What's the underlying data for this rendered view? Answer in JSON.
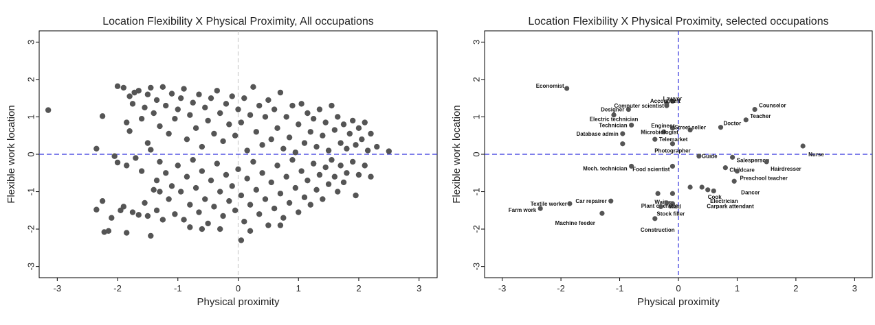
{
  "chart_data": [
    {
      "type": "scatter",
      "title": "Location Flexibility X Physical Proximity, All occupations",
      "xlabel": "Physical proximity",
      "ylabel": "Flexible work location",
      "xlim": [
        -3.3,
        3.3
      ],
      "ylim": [
        -3.3,
        3.3
      ],
      "xticks": [
        -3,
        -2,
        -1,
        0,
        1,
        2,
        3
      ],
      "yticks": [
        -3,
        -2,
        -1,
        0,
        1,
        2,
        3
      ],
      "point_color": "#555555",
      "reference_lines": {
        "horizontal": 0,
        "horizontal_color": "#3333dd",
        "vertical": 0,
        "vertical_color": "#cccccc"
      },
      "points": [
        [
          -3.15,
          1.18
        ],
        [
          -2.25,
          1.02
        ],
        [
          -2.35,
          0.15
        ],
        [
          -2.35,
          -1.48
        ],
        [
          -2.25,
          -1.25
        ],
        [
          -2.22,
          -2.08
        ],
        [
          -2.15,
          -2.05
        ],
        [
          -2.1,
          -1.7
        ],
        [
          -2.05,
          -0.05
        ],
        [
          -2.0,
          -0.22
        ],
        [
          -1.95,
          -1.5
        ],
        [
          -1.9,
          -1.4
        ],
        [
          -1.85,
          -2.1
        ],
        [
          -1.85,
          -0.3
        ],
        [
          -1.8,
          0.62
        ],
        [
          -1.75,
          -1.55
        ],
        [
          -1.7,
          -0.1
        ],
        [
          -1.65,
          -1.62
        ],
        [
          -1.6,
          -0.45
        ],
        [
          -1.55,
          -1.3
        ],
        [
          -1.5,
          -1.65
        ],
        [
          -1.45,
          -2.18
        ],
        [
          -1.5,
          0.3
        ],
        [
          -1.45,
          0.12
        ],
        [
          -1.4,
          -0.95
        ],
        [
          -1.35,
          -1.5
        ],
        [
          -1.3,
          -0.2
        ],
        [
          -2.0,
          1.82
        ],
        [
          -1.9,
          1.78
        ],
        [
          -1.85,
          0.85
        ],
        [
          -1.8,
          1.55
        ],
        [
          -1.75,
          1.35
        ],
        [
          -1.72,
          1.65
        ],
        [
          -1.65,
          1.7
        ],
        [
          -1.6,
          0.95
        ],
        [
          -1.55,
          1.25
        ],
        [
          -1.5,
          1.6
        ],
        [
          -1.45,
          1.78
        ],
        [
          -1.4,
          1.1
        ],
        [
          -1.35,
          1.45
        ],
        [
          -1.3,
          0.75
        ],
        [
          -1.25,
          1.8
        ],
        [
          -1.2,
          1.3
        ],
        [
          -1.15,
          0.55
        ],
        [
          -1.1,
          1.62
        ],
        [
          -1.05,
          0.95
        ],
        [
          -1.0,
          1.2
        ],
        [
          -0.95,
          1.5
        ],
        [
          -0.9,
          1.75
        ],
        [
          -0.85,
          0.4
        ],
        [
          -0.8,
          1.05
        ],
        [
          -0.75,
          1.38
        ],
        [
          -0.7,
          0.7
        ],
        [
          -0.65,
          1.6
        ],
        [
          -0.6,
          0.2
        ],
        [
          -0.55,
          1.25
        ],
        [
          -0.5,
          0.9
        ],
        [
          -0.45,
          1.5
        ],
        [
          -0.4,
          0.55
        ],
        [
          -0.35,
          1.7
        ],
        [
          -0.3,
          1.1
        ],
        [
          -0.25,
          0.35
        ],
        [
          -0.2,
          1.35
        ],
        [
          -0.15,
          0.8
        ],
        [
          -0.1,
          1.55
        ],
        [
          -0.05,
          0.5
        ],
        [
          0.0,
          1.2
        ],
        [
          0.05,
          0.85
        ],
        [
          0.1,
          1.5
        ],
        [
          0.15,
          0.1
        ],
        [
          0.2,
          1.05
        ],
        [
          0.25,
          1.8
        ],
        [
          0.3,
          0.6
        ],
        [
          0.35,
          1.3
        ],
        [
          0.4,
          0.25
        ],
        [
          0.45,
          1.0
        ],
        [
          0.5,
          1.45
        ],
        [
          0.55,
          0.4
        ],
        [
          0.6,
          1.2
        ],
        [
          0.65,
          0.7
        ],
        [
          0.7,
          1.65
        ],
        [
          0.75,
          0.15
        ],
        [
          0.8,
          1.0
        ],
        [
          0.85,
          0.45
        ],
        [
          0.9,
          1.3
        ],
        [
          0.95,
          0.05
        ],
        [
          1.0,
          0.8
        ],
        [
          1.05,
          1.35
        ],
        [
          1.1,
          0.3
        ],
        [
          1.15,
          1.1
        ],
        [
          1.2,
          0.6
        ],
        [
          1.25,
          0.95
        ],
        [
          1.3,
          0.2
        ],
        [
          1.35,
          1.2
        ],
        [
          1.4,
          0.5
        ],
        [
          1.45,
          0.85
        ],
        [
          1.5,
          0.1
        ],
        [
          1.55,
          1.3
        ],
        [
          1.6,
          0.65
        ],
        [
          1.65,
          1.0
        ],
        [
          1.7,
          0.3
        ],
        [
          1.75,
          0.8
        ],
        [
          1.8,
          0.15
        ],
        [
          1.85,
          0.55
        ],
        [
          1.9,
          0.9
        ],
        [
          1.95,
          0.25
        ],
        [
          2.0,
          0.7
        ],
        [
          2.05,
          0.4
        ],
        [
          2.1,
          0.85
        ],
        [
          2.15,
          0.1
        ],
        [
          2.2,
          0.55
        ],
        [
          2.3,
          0.2
        ],
        [
          2.5,
          0.08
        ],
        [
          -1.2,
          -0.5
        ],
        [
          -1.15,
          -1.2
        ],
        [
          -1.1,
          -0.85
        ],
        [
          -1.05,
          -1.6
        ],
        [
          -1.0,
          -0.3
        ],
        [
          -0.95,
          -1.0
        ],
        [
          -0.9,
          -1.75
        ],
        [
          -0.85,
          -0.6
        ],
        [
          -0.8,
          -1.35
        ],
        [
          -0.75,
          -0.15
        ],
        [
          -0.7,
          -0.9
        ],
        [
          -0.65,
          -1.55
        ],
        [
          -0.6,
          -0.45
        ],
        [
          -0.55,
          -1.2
        ],
        [
          -0.5,
          -1.85
        ],
        [
          -0.45,
          -0.7
        ],
        [
          -0.4,
          -1.4
        ],
        [
          -0.35,
          -0.25
        ],
        [
          -0.3,
          -1.0
        ],
        [
          -0.25,
          -1.65
        ],
        [
          -0.2,
          -0.55
        ],
        [
          -0.15,
          -1.25
        ],
        [
          -0.1,
          -0.85
        ],
        [
          -0.05,
          -1.5
        ],
        [
          0.0,
          -0.4
        ],
        [
          0.05,
          -1.1
        ],
        [
          0.1,
          -1.8
        ],
        [
          0.15,
          -0.65
        ],
        [
          0.2,
          -1.35
        ],
        [
          0.25,
          -0.2
        ],
        [
          0.3,
          -0.95
        ],
        [
          0.35,
          -1.6
        ],
        [
          0.4,
          -0.5
        ],
        [
          0.45,
          -1.2
        ],
        [
          0.5,
          -1.9
        ],
        [
          0.55,
          -0.75
        ],
        [
          0.6,
          -1.45
        ],
        [
          0.65,
          -0.3
        ],
        [
          0.7,
          -1.05
        ],
        [
          0.75,
          -1.7
        ],
        [
          0.8,
          -0.6
        ],
        [
          0.85,
          -1.3
        ],
        [
          0.9,
          -0.15
        ],
        [
          0.95,
          -0.9
        ],
        [
          1.0,
          -1.55
        ],
        [
          1.05,
          -0.45
        ],
        [
          1.1,
          -1.15
        ],
        [
          1.15,
          -0.7
        ],
        [
          1.2,
          -1.35
        ],
        [
          1.25,
          -0.25
        ],
        [
          1.3,
          -0.95
        ],
        [
          1.35,
          -0.55
        ],
        [
          1.4,
          -1.2
        ],
        [
          1.45,
          -0.35
        ],
        [
          1.5,
          -0.8
        ],
        [
          1.55,
          -0.15
        ],
        [
          1.6,
          -0.6
        ],
        [
          1.65,
          -1.0
        ],
        [
          1.7,
          -0.3
        ],
        [
          1.75,
          -0.75
        ],
        [
          1.8,
          -0.5
        ],
        [
          1.9,
          -0.2
        ],
        [
          1.95,
          -1.1
        ],
        [
          2.0,
          -0.55
        ],
        [
          2.1,
          -0.3
        ],
        [
          2.2,
          -0.6
        ],
        [
          0.05,
          -2.3
        ],
        [
          -0.3,
          -2.0
        ],
        [
          0.2,
          -2.05
        ],
        [
          0.7,
          -1.9
        ],
        [
          -1.3,
          -1.0
        ],
        [
          -1.25,
          -1.75
        ],
        [
          -1.35,
          -0.7
        ],
        [
          -0.6,
          -2.0
        ],
        [
          -0.8,
          -1.95
        ]
      ]
    },
    {
      "type": "scatter",
      "title": "Location Flexibility X Physical Proximity, selected occupations",
      "xlabel": "Physical proximity",
      "ylabel": "Flexible work location",
      "xlim": [
        -3.3,
        3.3
      ],
      "ylim": [
        -3.3,
        3.3
      ],
      "xticks": [
        -3,
        -2,
        -1,
        0,
        1,
        2,
        3
      ],
      "yticks": [
        -3,
        -2,
        -1,
        0,
        1,
        2,
        3
      ],
      "point_color": "#555555",
      "reference_lines": {
        "horizontal": 0,
        "horizontal_color": "#3333dd",
        "vertical": 0,
        "vertical_color": "#3333dd"
      },
      "points": [
        {
          "label": "Economist",
          "x": -1.9,
          "y": 1.76,
          "anchor": "end",
          "dx": -4,
          "dy": -4
        },
        {
          "label": "Lawyer",
          "x": -0.1,
          "y": 1.42,
          "anchor": "middle",
          "dx": 0,
          "dy": -4
        },
        {
          "label": "Accountant",
          "x": -0.2,
          "y": 1.36,
          "anchor": "middle",
          "dx": -2,
          "dy": -4
        },
        {
          "label": "Computer scientist",
          "x": -0.2,
          "y": 1.3,
          "anchor": "end",
          "dx": -4,
          "dy": 0
        },
        {
          "label": "Designer",
          "x": -0.85,
          "y": 1.2,
          "anchor": "end",
          "dx": -6,
          "dy": 0
        },
        {
          "label": "Electric technician",
          "x": -1.1,
          "y": 1.05,
          "anchor": "middle",
          "dx": 0,
          "dy": 6
        },
        {
          "label": "Technician",
          "x": -0.8,
          "y": 0.78,
          "anchor": "end",
          "dx": -6,
          "dy": 0
        },
        {
          "label": "Database admin",
          "x": -0.95,
          "y": 0.55,
          "anchor": "end",
          "dx": -6,
          "dy": 0
        },
        {
          "label": "",
          "x": -0.95,
          "y": 0.28,
          "anchor": "start",
          "dx": 0,
          "dy": 0
        },
        {
          "label": "Microbiologist",
          "x": -0.25,
          "y": 0.6,
          "anchor": "middle",
          "dx": -6,
          "dy": 0
        },
        {
          "label": "Engineer",
          "x": -0.1,
          "y": 0.7,
          "anchor": "middle",
          "dx": -14,
          "dy": -4
        },
        {
          "label": "Street seller",
          "x": 0.2,
          "y": 0.65,
          "anchor": "middle",
          "dx": 0,
          "dy": -4
        },
        {
          "label": "Telemarket",
          "x": -0.4,
          "y": 0.4,
          "anchor": "start",
          "dx": 6,
          "dy": 0
        },
        {
          "label": "Photographer",
          "x": -0.1,
          "y": 0.28,
          "anchor": "middle",
          "dx": 0,
          "dy": 10
        },
        {
          "label": "Guide",
          "x": 0.35,
          "y": -0.05,
          "anchor": "start",
          "dx": 4,
          "dy": 0
        },
        {
          "label": "Food scientist",
          "x": -0.1,
          "y": -0.32,
          "anchor": "end",
          "dx": -4,
          "dy": 4
        },
        {
          "label": "Counselor",
          "x": 1.3,
          "y": 1.2,
          "anchor": "start",
          "dx": 6,
          "dy": -6
        },
        {
          "label": "Teacher",
          "x": 1.15,
          "y": 0.92,
          "anchor": "start",
          "dx": 6,
          "dy": -6
        },
        {
          "label": "Doctor",
          "x": 0.72,
          "y": 0.72,
          "anchor": "start",
          "dx": 4,
          "dy": -6
        },
        {
          "label": "Nurse",
          "x": 2.12,
          "y": 0.22,
          "anchor": "start",
          "dx": 8,
          "dy": 12
        },
        {
          "label": "Salesperson",
          "x": 0.92,
          "y": -0.08,
          "anchor": "start",
          "dx": 6,
          "dy": 4
        },
        {
          "label": "Childcare",
          "x": 0.8,
          "y": -0.36,
          "anchor": "start",
          "dx": 6,
          "dy": 3
        },
        {
          "label": "Hairdresser",
          "x": 1.5,
          "y": -0.2,
          "anchor": "start",
          "dx": 6,
          "dy": 10
        },
        {
          "label": "Preschool teacher",
          "x": 1.0,
          "y": -0.45,
          "anchor": "start",
          "dx": 4,
          "dy": 10
        },
        {
          "label": "Mech. technician",
          "x": -0.8,
          "y": -0.32,
          "anchor": "end",
          "dx": -6,
          "dy": 3
        },
        {
          "label": "Dancer",
          "x": 0.95,
          "y": -0.72,
          "anchor": "start",
          "dx": 10,
          "dy": 16
        },
        {
          "label": "Cook",
          "x": 0.5,
          "y": -0.95,
          "anchor": "start",
          "dx": 0,
          "dy": 10
        },
        {
          "label": "Electrician",
          "x": 0.4,
          "y": -0.88,
          "anchor": "start",
          "dx": 12,
          "dy": 20
        },
        {
          "label": "Carpark attendant",
          "x": 0.6,
          "y": -0.98,
          "anchor": "start",
          "dx": -10,
          "dy": 22
        },
        {
          "label": "Waiter",
          "x": -0.1,
          "y": -1.05,
          "anchor": "middle",
          "dx": -14,
          "dy": 12
        },
        {
          "label": "Plant operator",
          "x": -0.2,
          "y": -1.3,
          "anchor": "middle",
          "dx": -10,
          "dy": 4
        },
        {
          "label": "Maid",
          "x": -0.1,
          "y": -1.32,
          "anchor": "start",
          "dx": -6,
          "dy": 4
        },
        {
          "label": "Stock filler",
          "x": -0.3,
          "y": -1.4,
          "anchor": "start",
          "dx": -6,
          "dy": 10
        },
        {
          "label": "",
          "x": 0.2,
          "y": -0.88,
          "anchor": "start",
          "dx": 0,
          "dy": 0
        },
        {
          "label": "",
          "x": -0.35,
          "y": -1.05,
          "anchor": "start",
          "dx": 0,
          "dy": 0
        },
        {
          "label": "Car repairer",
          "x": -1.15,
          "y": -1.25,
          "anchor": "end",
          "dx": -6,
          "dy": 0
        },
        {
          "label": "Textile worker",
          "x": -1.85,
          "y": -1.32,
          "anchor": "end",
          "dx": -4,
          "dy": 0
        },
        {
          "label": "Farm work",
          "x": -2.35,
          "y": -1.45,
          "anchor": "end",
          "dx": -6,
          "dy": 2
        },
        {
          "label": "Machine feeder",
          "x": -1.3,
          "y": -1.58,
          "anchor": "end",
          "dx": -10,
          "dy": 14
        },
        {
          "label": "Construction",
          "x": -0.4,
          "y": -1.72,
          "anchor": "middle",
          "dx": 4,
          "dy": 16
        }
      ]
    }
  ]
}
